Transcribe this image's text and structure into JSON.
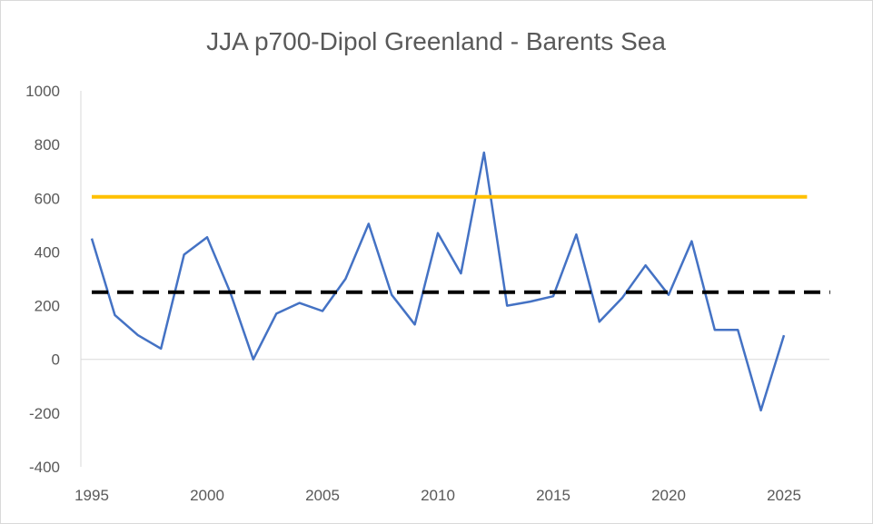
{
  "chart_data": {
    "type": "line",
    "title": "JJA p700-Dipol Greenland - Barents Sea",
    "xlabel": "",
    "ylabel": "",
    "xlim": [
      1995,
      2027
    ],
    "ylim": [
      -400,
      1000
    ],
    "x_ticks": [
      1995,
      2000,
      2005,
      2010,
      2015,
      2020,
      2025
    ],
    "y_ticks": [
      -400,
      -200,
      0,
      200,
      400,
      600,
      800,
      1000
    ],
    "grid": false,
    "legend": "none",
    "series": [
      {
        "color": "#4472C4",
        "style": "solid",
        "x": [
          1995,
          1996,
          1997,
          1998,
          1999,
          2000,
          2001,
          2002,
          2003,
          2004,
          2005,
          2006,
          2007,
          2008,
          2009,
          2010,
          2011,
          2012,
          2013,
          2014,
          2015,
          2016,
          2017,
          2018,
          2019,
          2020,
          2021,
          2022,
          2023,
          2024,
          2025
        ],
        "values": [
          450,
          165,
          90,
          40,
          390,
          455,
          250,
          0,
          170,
          210,
          180,
          300,
          505,
          240,
          130,
          470,
          320,
          770,
          200,
          215,
          235,
          465,
          140,
          230,
          350,
          240,
          440,
          110,
          110,
          -190,
          90
        ]
      },
      {
        "color": "#FFC000",
        "style": "solid",
        "x": [
          1995,
          2026
        ],
        "values": [
          605,
          605
        ]
      },
      {
        "color": "#000000",
        "style": "dashed",
        "x": [
          1995,
          2027
        ],
        "values": [
          250,
          250
        ]
      }
    ]
  }
}
